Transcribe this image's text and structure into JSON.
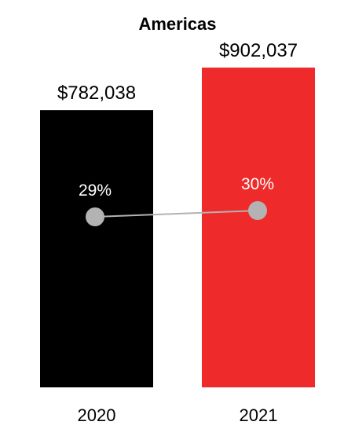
{
  "chart_data": {
    "type": "bar",
    "title": "Americas",
    "categories": [
      "2020",
      "2021"
    ],
    "series": [
      {
        "values": [
          782038,
          902037
        ],
        "value_labels": [
          "$782,038",
          "$902,037"
        ],
        "colors": [
          "#000000",
          "#ee2a2a"
        ]
      },
      {
        "type": "line",
        "values": [
          29,
          30
        ],
        "value_labels": [
          "29%",
          "30%"
        ],
        "color": "#b3b3b3"
      }
    ],
    "xlabel": "",
    "ylabel": "",
    "grid": false,
    "legend": "none"
  }
}
